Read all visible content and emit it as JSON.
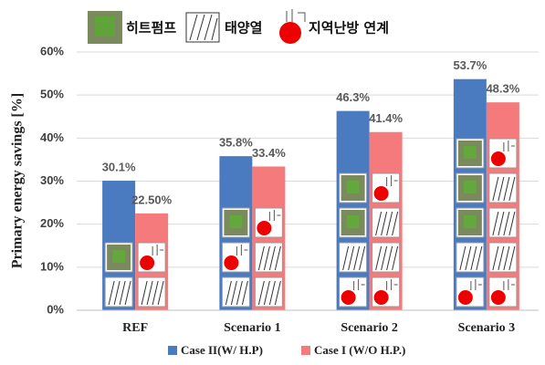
{
  "chart_data": {
    "type": "bar",
    "annotations": [
      "히트펌프",
      "태양열",
      "지역난방 연계"
    ],
    "y_label": "Primary energy savings [%]",
    "categories": [
      "REF",
      "Scenario 1",
      "Scenario 2",
      "Scenario 3"
    ],
    "series": [
      {
        "name": "Case II(W/ H.P)",
        "color": "#4a7bc0",
        "values": [
          30.1,
          35.8,
          46.3,
          53.7
        ],
        "value_labels": [
          "30.1%",
          "35.8%",
          "46.3%",
          "53.7%"
        ]
      },
      {
        "name": "Case I (W/O H.P.)",
        "color": "#f47a7c",
        "values": [
          22.5,
          33.4,
          41.4,
          48.3
        ],
        "value_labels": [
          "22.50%",
          "33.4%",
          "41.4%",
          "48.3%"
        ]
      }
    ],
    "ylim": [
      0,
      60
    ],
    "yticks": [
      {
        "value": 0,
        "label": "0%"
      },
      {
        "value": 10,
        "label": "10%"
      },
      {
        "value": 20,
        "label": "20%"
      },
      {
        "value": 30,
        "label": "30%"
      },
      {
        "value": 40,
        "label": "40%"
      },
      {
        "value": 50,
        "label": "50%"
      },
      {
        "value": 60,
        "label": "60%"
      }
    ],
    "grid": true
  }
}
